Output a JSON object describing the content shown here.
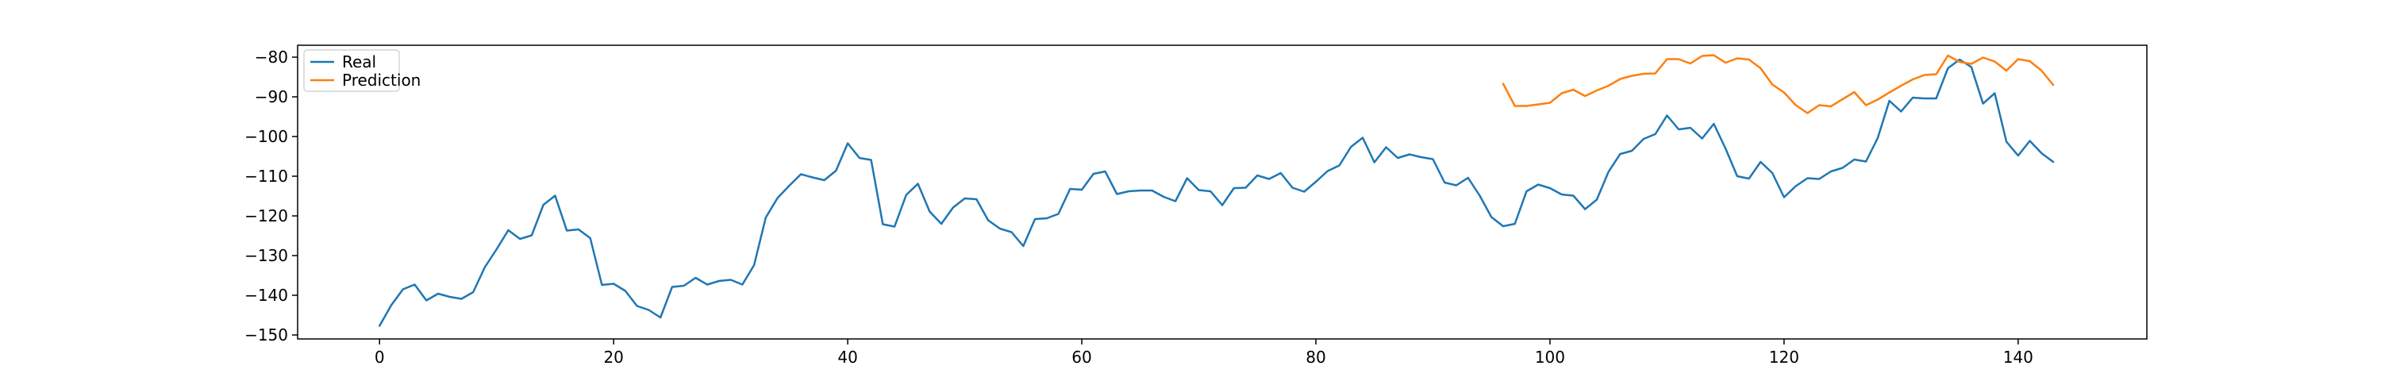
{
  "colors": {
    "real": "#1f77b4",
    "prediction": "#ff7f0e",
    "axes": "#000000",
    "background": "#ffffff"
  },
  "legend": {
    "position": "top-left",
    "real_label": "Real",
    "prediction_label": "Prediction"
  },
  "chart_data": {
    "type": "line",
    "title": "",
    "xlabel": "",
    "ylabel": "",
    "xlim": [
      -7,
      151
    ],
    "ylim": [
      -151,
      -77
    ],
    "grid": false,
    "xticks": [
      0,
      20,
      40,
      60,
      80,
      100,
      120,
      140
    ],
    "yticks": [
      -150,
      -140,
      -130,
      -120,
      -110,
      -100,
      -90,
      -80
    ],
    "series": [
      {
        "name": "Real",
        "x_start": 0,
        "values": [
          -147.7,
          -142.5,
          -138.5,
          -137.3,
          -141.3,
          -139.6,
          -140.4,
          -140.9,
          -139.2,
          -132.9,
          -128.4,
          -123.6,
          -125.8,
          -124.9,
          -117.2,
          -114.9,
          -123.7,
          -123.4,
          -125.6,
          -137.4,
          -137.1,
          -138.9,
          -142.7,
          -143.7,
          -145.6,
          -137.9,
          -137.6,
          -135.6,
          -137.3,
          -136.4,
          -136.1,
          -137.3,
          -132.4,
          -120.4,
          -115.5,
          -112.4,
          -109.5,
          -110.3,
          -111.0,
          -108.6,
          -101.7,
          -105.4,
          -105.9,
          -122.1,
          -122.7,
          -114.7,
          -111.9,
          -118.9,
          -122.0,
          -117.9,
          -115.6,
          -115.8,
          -121.1,
          -123.2,
          -124.1,
          -127.6,
          -120.8,
          -120.6,
          -119.5,
          -113.2,
          -113.4,
          -109.4,
          -108.8,
          -114.5,
          -113.8,
          -113.6,
          -113.6,
          -115.2,
          -116.3,
          -110.5,
          -113.5,
          -113.8,
          -117.3,
          -113.0,
          -112.9,
          -109.8,
          -110.7,
          -109.2,
          -112.9,
          -113.9,
          -111.4,
          -108.7,
          -107.3,
          -102.6,
          -100.3,
          -106.5,
          -102.7,
          -105.4,
          -104.5,
          -105.2,
          -105.7,
          -111.6,
          -112.3,
          -110.4,
          -114.9,
          -120.3,
          -122.6,
          -122.0,
          -113.8,
          -112.1,
          -113.0,
          -114.6,
          -114.9,
          -118.3,
          -115.9,
          -108.9,
          -104.4,
          -103.6,
          -100.6,
          -99.4,
          -94.7,
          -98.2,
          -97.8,
          -100.5,
          -96.8,
          -103.0,
          -110.0,
          -110.6,
          -106.4,
          -109.2,
          -115.3,
          -112.5,
          -110.5,
          -110.7,
          -108.8,
          -107.9,
          -105.8,
          -106.3,
          -100.4,
          -91.0,
          -93.7,
          -90.2,
          -90.4,
          -90.4,
          -82.8,
          -80.6,
          -82.5,
          -91.7,
          -89.1,
          -101.3,
          -104.8,
          -101.1,
          -104.2,
          -106.4
        ]
      },
      {
        "name": "Prediction",
        "x_start": 96,
        "values": [
          -86.7,
          -92.3,
          -92.3,
          -91.9,
          -91.5,
          -89.1,
          -88.2,
          -89.8,
          -88.4,
          -87.2,
          -85.5,
          -84.7,
          -84.2,
          -84.1,
          -80.5,
          -80.5,
          -81.6,
          -79.7,
          -79.5,
          -81.4,
          -80.3,
          -80.6,
          -82.8,
          -86.9,
          -88.9,
          -92.1,
          -94.1,
          -92.1,
          -92.4,
          -90.6,
          -88.8,
          -92.1,
          -90.7,
          -88.9,
          -87.2,
          -85.6,
          -84.5,
          -84.3,
          -79.6,
          -81.2,
          -81.7,
          -80.1,
          -81.1,
          -83.4,
          -80.5,
          -81.0,
          -83.4,
          -87.0
        ]
      }
    ]
  }
}
